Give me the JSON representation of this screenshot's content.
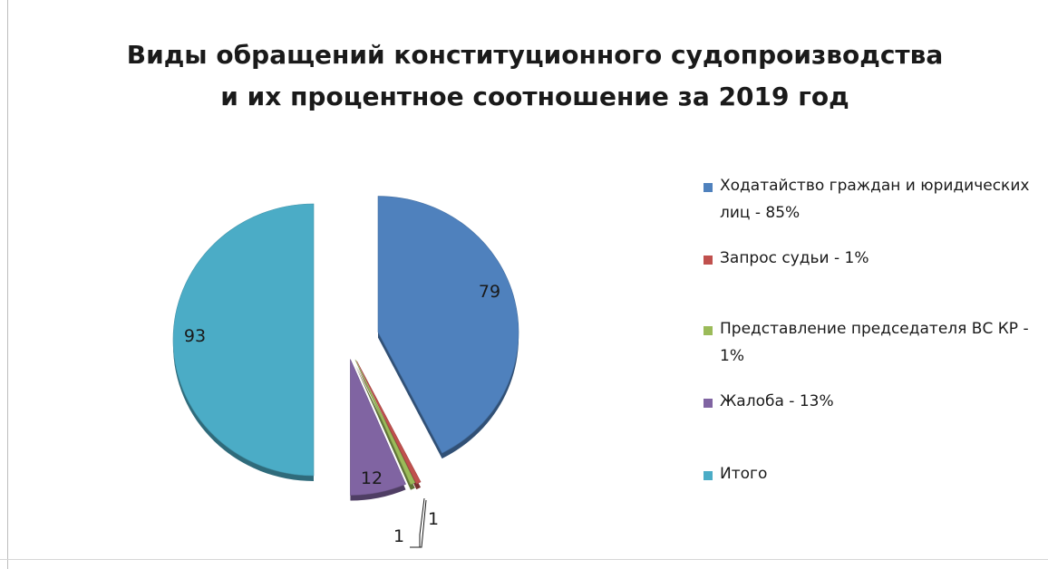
{
  "chart_data": {
    "type": "pie",
    "title_lines": [
      "Виды обращений конституционного судопроизводства",
      "и их процентное соотношение за 2019 год"
    ],
    "slices": [
      {
        "legend": "Ходатайство граждан и юридических  лиц - 85%",
        "value": 79,
        "label": "79",
        "color": "#4f81bd"
      },
      {
        "legend": "Запрос судьи - 1%",
        "value": 1,
        "label": "1",
        "color": "#c0504d"
      },
      {
        "legend": "Представление  председателя ВС КР - 1%",
        "value": 1,
        "label": "1",
        "color": "#9bbb59"
      },
      {
        "legend": "Жалоба - 13%",
        "value": 12,
        "label": "12",
        "color": "#8064a2"
      },
      {
        "legend": "Итого",
        "value": 93,
        "label": "93",
        "color": "#4bacc6"
      }
    ],
    "legend_position": "right",
    "exploded": true,
    "style": "3d"
  }
}
